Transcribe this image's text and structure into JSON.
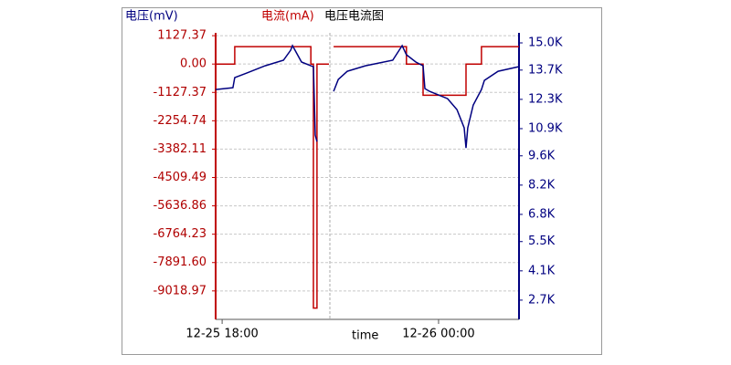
{
  "chart_data": {
    "type": "line",
    "title": "电压电流图",
    "ylabel": "电流(mA)",
    "y2label": "电压(mV)",
    "xlabel": "time",
    "xlim": [
      17.82,
      26.23
    ],
    "xticks": [
      {
        "value": 18,
        "label": "12-25 18:00"
      },
      {
        "value": 24,
        "label": "12-26 00:00"
      }
    ],
    "ylim": [
      -10150,
      1240
    ],
    "yticks": [
      1127.37,
      {
        "value": 0,
        "label": "0.00"
      },
      -1127.37,
      -2254.74,
      -3382.11,
      -4509.49,
      -5636.86,
      -6764.23,
      {
        "value": -7891.6,
        "label": "-7891.60"
      },
      -9018.97
    ],
    "y2lim": [
      1780,
      15480
    ],
    "y2ticks": [
      {
        "value": 15000,
        "label": "15.0K"
      },
      {
        "value": 13700,
        "label": "13.7K"
      },
      {
        "value": 12300,
        "label": "12.3K"
      },
      {
        "value": 10900,
        "label": "10.9K"
      },
      {
        "value": 9600,
        "label": "9.6K"
      },
      {
        "value": 8200,
        "label": "8.2K"
      },
      {
        "value": 6800,
        "label": "6.8K"
      },
      {
        "value": 5500,
        "label": "5.5K"
      },
      {
        "value": 4100,
        "label": "4.1K"
      },
      {
        "value": 2700,
        "label": "2.7K"
      }
    ],
    "grid": true,
    "series": [
      {
        "name": "电流(mA)",
        "color": "#c00000",
        "axis": "y",
        "x": [
          17.82,
          18.35,
          18.35,
          20.46,
          20.46,
          20.53,
          20.53,
          20.63,
          20.63,
          20.96,
          21.0,
          21.09,
          23.11,
          23.11,
          23.57,
          23.57,
          24.76,
          24.76,
          25.19,
          25.19,
          26.23
        ],
        "values": [
          0,
          0,
          693,
          693,
          0,
          0,
          -9702,
          -9702,
          0,
          0,
          null,
          693,
          693,
          0,
          0,
          -1240,
          -1240,
          0,
          0,
          693,
          693
        ]
      },
      {
        "name": "电压(mV)",
        "color": "#000080",
        "axis": "y2",
        "x": [
          17.82,
          18.3,
          18.35,
          18.68,
          19.19,
          19.7,
          19.9,
          19.95,
          20.2,
          20.46,
          20.53,
          20.58,
          20.63,
          21.0,
          21.09,
          21.22,
          21.47,
          21.97,
          22.73,
          22.99,
          23.11,
          23.37,
          23.57,
          23.62,
          23.75,
          24.25,
          24.51,
          24.71,
          24.76,
          24.81,
          24.96,
          25.19,
          25.27,
          25.65,
          26.23
        ],
        "values": [
          12771,
          12859,
          13340,
          13558,
          13907,
          14170,
          14650,
          14869,
          14082,
          13907,
          13860,
          10586,
          10280,
          null,
          12684,
          13252,
          13645,
          13907,
          14170,
          14869,
          14432,
          14082,
          13907,
          12815,
          12684,
          12334,
          11810,
          10936,
          9975,
          10936,
          12028,
          12771,
          13208,
          13645,
          13864
        ]
      }
    ]
  }
}
